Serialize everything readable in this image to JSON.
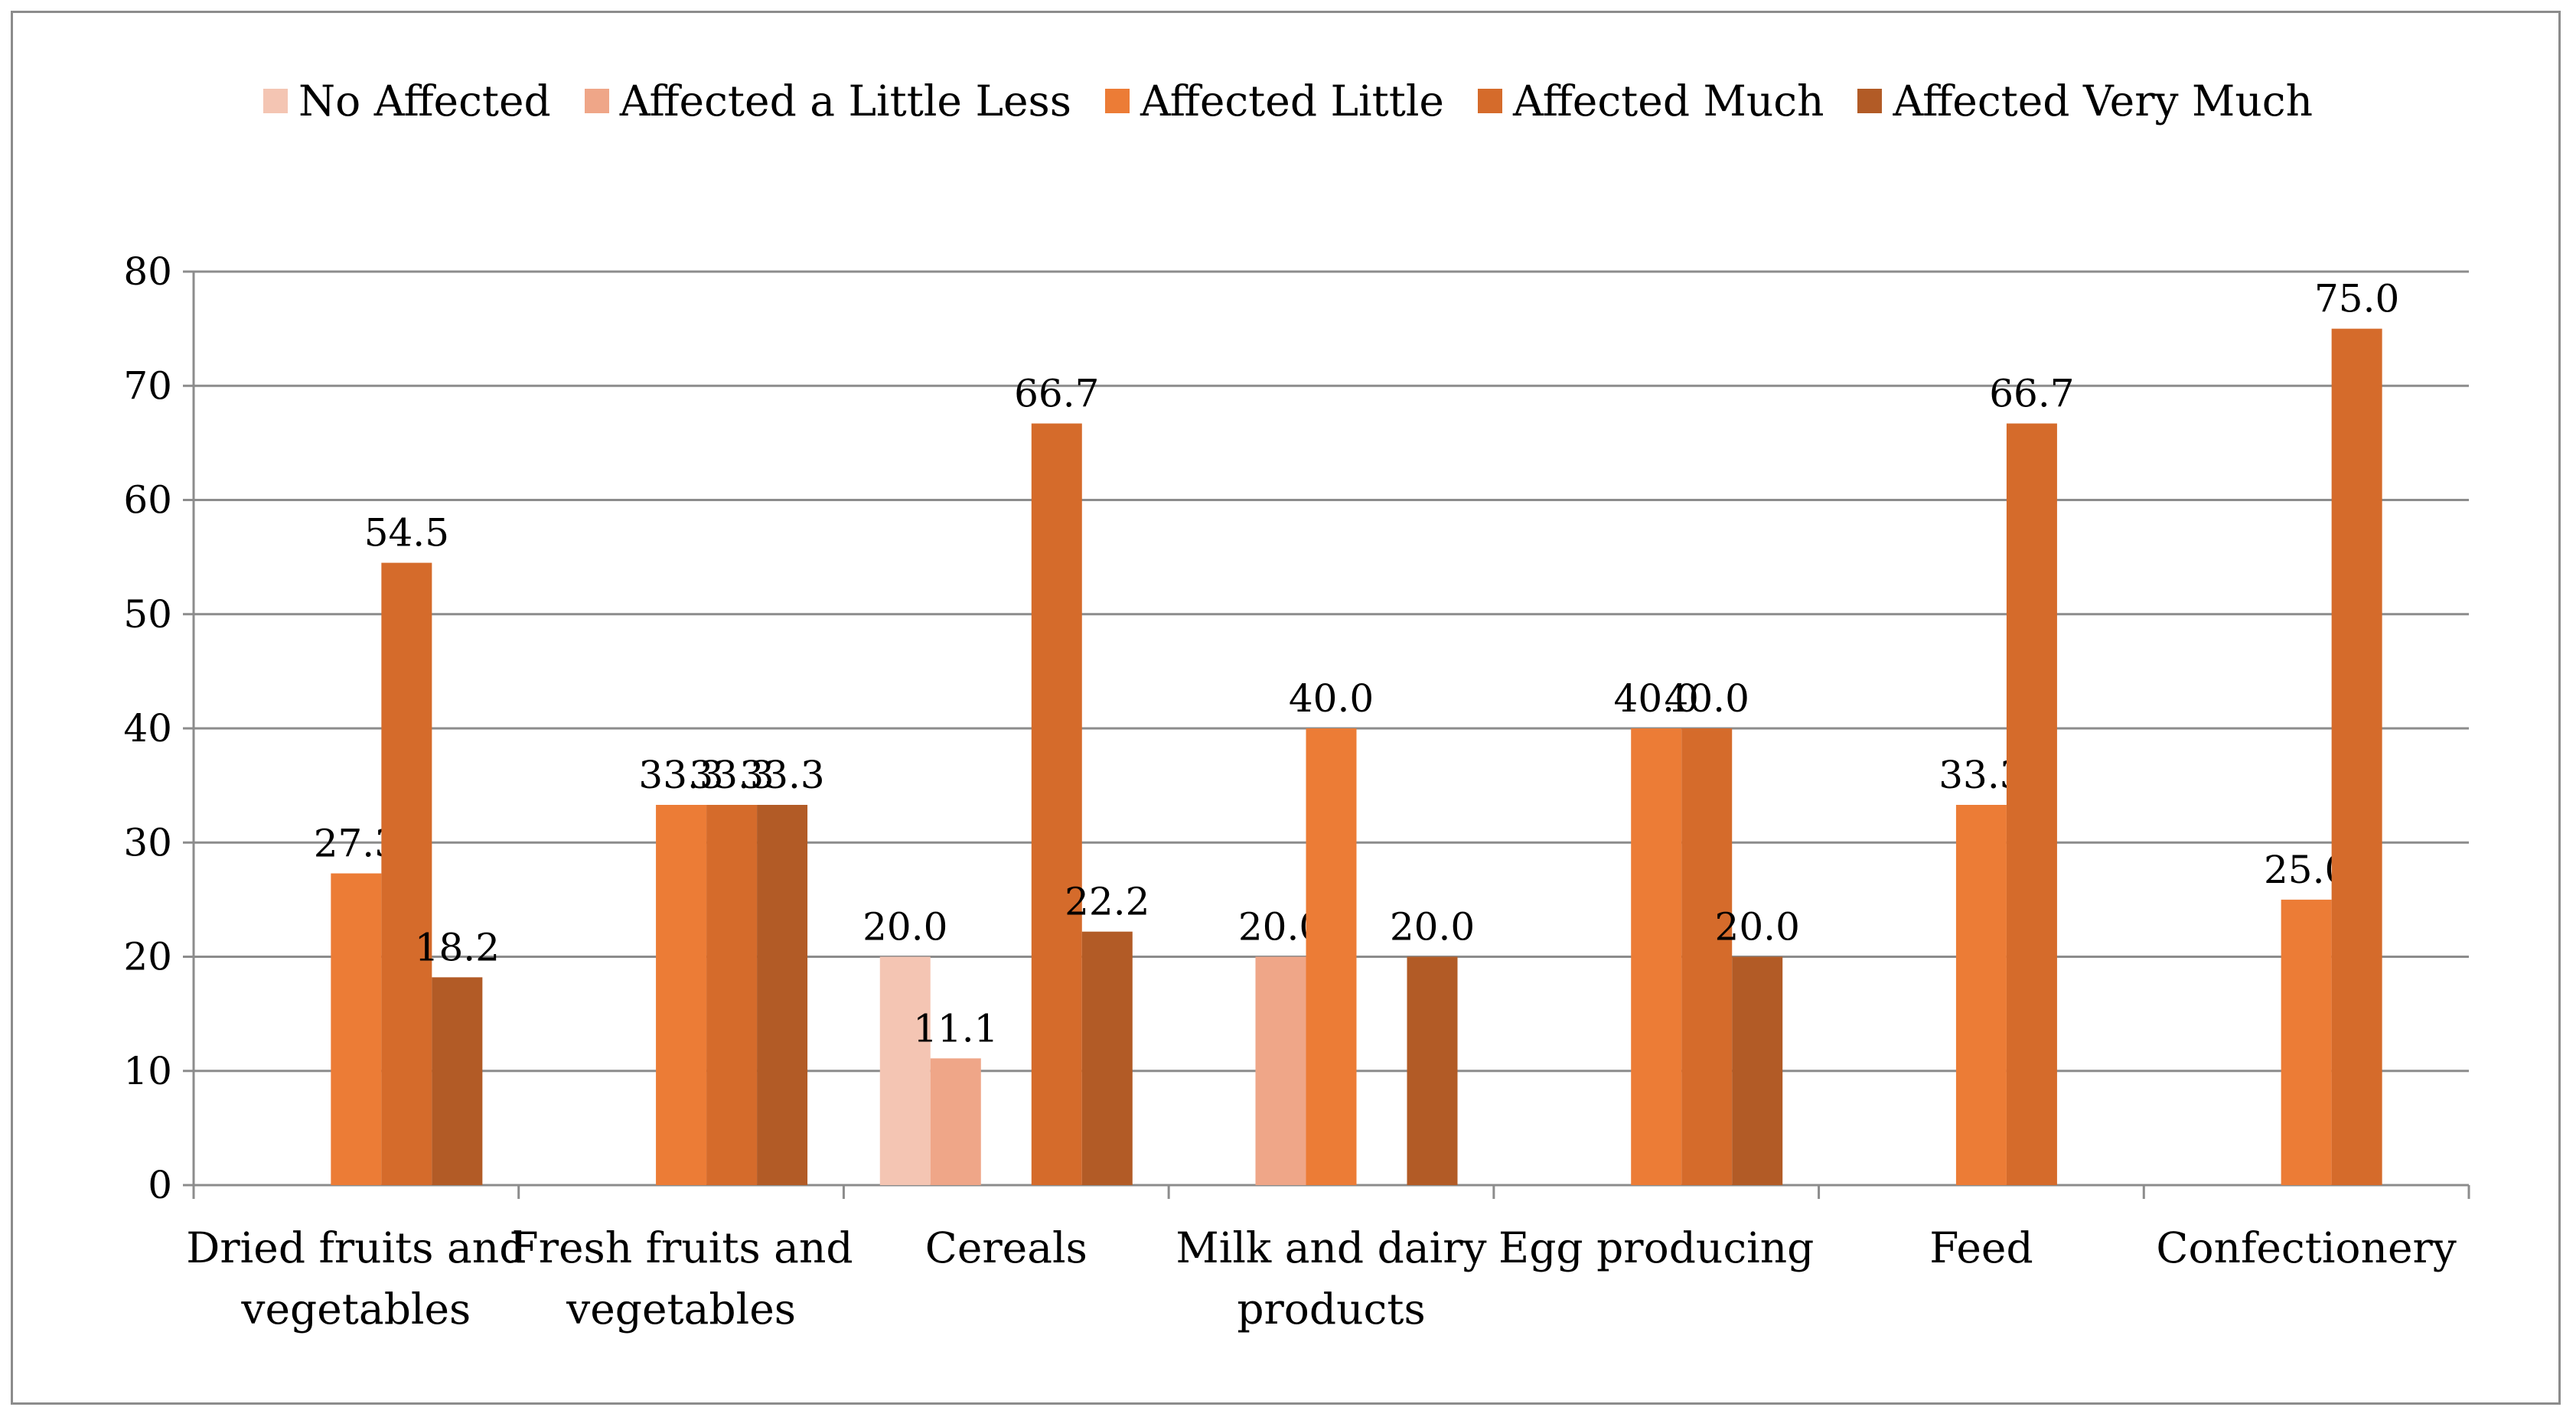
{
  "chart_data": {
    "type": "bar",
    "title": "",
    "xlabel": "",
    "ylabel": "",
    "ylim": [
      0,
      80
    ],
    "yticks": [
      0,
      10,
      20,
      30,
      40,
      50,
      60,
      70,
      80
    ],
    "grid": true,
    "legend_position": "top",
    "categories": [
      [
        "Dried fruits and",
        "vegetables"
      ],
      [
        "Fresh fruits and",
        "vegetables"
      ],
      [
        "Cereals"
      ],
      [
        "Milk and dairy",
        "products"
      ],
      [
        "Egg producing"
      ],
      [
        "Feed"
      ],
      [
        "Confectionery"
      ]
    ],
    "series": [
      {
        "name": "No Affected",
        "color": "#f4c5b3",
        "values": [
          null,
          null,
          20.0,
          null,
          null,
          null,
          null
        ]
      },
      {
        "name": "Affected a Little Less",
        "color": "#efa688",
        "values": [
          null,
          null,
          11.1,
          20.0,
          null,
          null,
          null
        ]
      },
      {
        "name": "Affected Little",
        "color": "#ec7c36",
        "values": [
          27.3,
          33.3,
          null,
          40.0,
          40.0,
          33.3,
          25.0
        ]
      },
      {
        "name": "Affected Much",
        "color": "#d56b2b",
        "values": [
          54.5,
          33.3,
          66.7,
          null,
          40.0,
          66.7,
          75.0
        ]
      },
      {
        "name": "Affected Very Much",
        "color": "#b25b26",
        "values": [
          18.2,
          33.3,
          22.2,
          20.0,
          20.0,
          null,
          null
        ]
      }
    ]
  }
}
